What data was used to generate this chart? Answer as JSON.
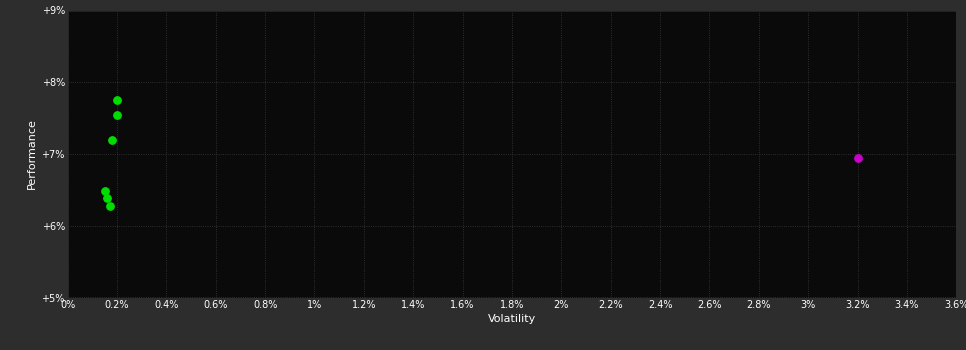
{
  "background_color": "#2d2d2d",
  "plot_bg_color": "#0a0a0a",
  "grid_color": "#3a3a3a",
  "text_color": "#ffffff",
  "xlabel": "Volatility",
  "ylabel": "Performance",
  "xlim": [
    0,
    0.036
  ],
  "ylim": [
    0.05,
    0.09
  ],
  "xticks": [
    0,
    0.002,
    0.004,
    0.006,
    0.008,
    0.01,
    0.012,
    0.014,
    0.016,
    0.018,
    0.02,
    0.022,
    0.024,
    0.026,
    0.028,
    0.03,
    0.032,
    0.034,
    0.036
  ],
  "xtick_labels": [
    "0%",
    "0.2%",
    "0.4%",
    "0.6%",
    "0.8%",
    "1%",
    "1.2%",
    "1.4%",
    "1.6%",
    "1.8%",
    "2%",
    "2.2%",
    "2.4%",
    "2.6%",
    "2.8%",
    "3%",
    "3.2%",
    "3.4%",
    "3.6%"
  ],
  "yticks": [
    0.05,
    0.06,
    0.07,
    0.08,
    0.09
  ],
  "ytick_labels": [
    "+5%",
    "+6%",
    "+7%",
    "+8%",
    "+9%"
  ],
  "green_points": [
    [
      0.002,
      0.0775
    ],
    [
      0.002,
      0.0755
    ],
    [
      0.0018,
      0.072
    ],
    [
      0.0015,
      0.0648
    ],
    [
      0.0016,
      0.0638
    ],
    [
      0.0017,
      0.0628
    ]
  ],
  "magenta_points": [
    [
      0.032,
      0.0695
    ]
  ],
  "green_color": "#00dd00",
  "magenta_color": "#cc00cc",
  "marker_size": 28
}
